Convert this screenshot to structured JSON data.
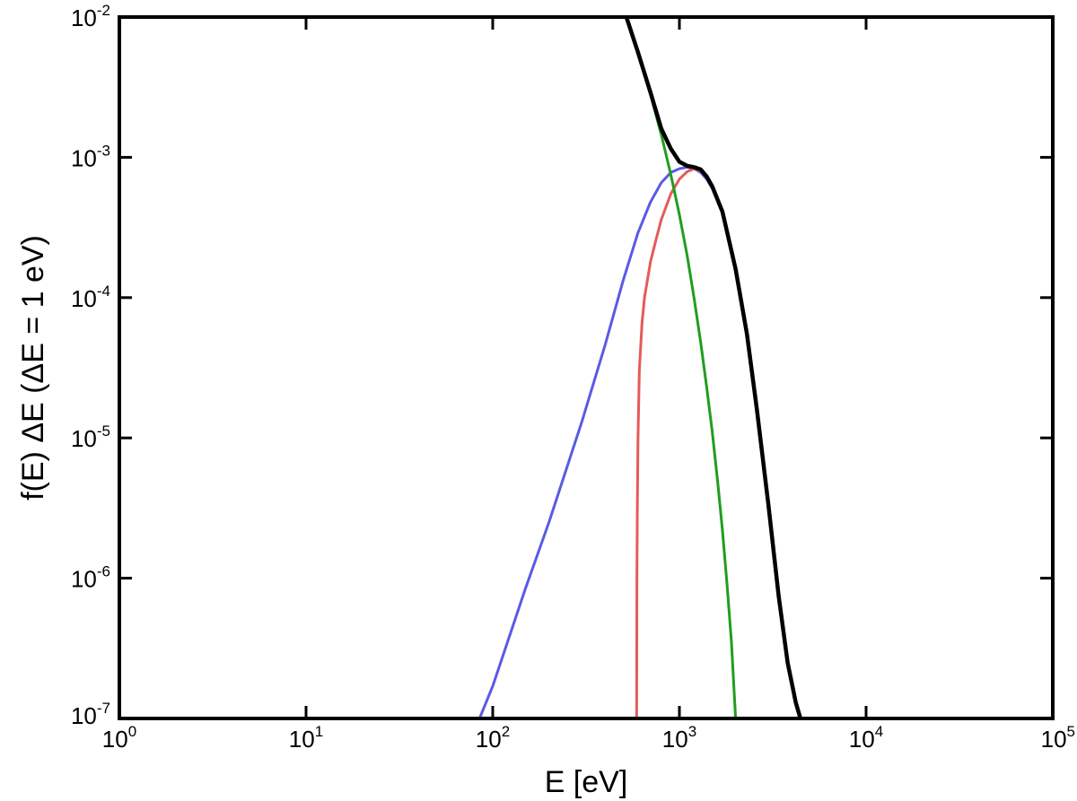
{
  "chart_data": {
    "type": "line",
    "title": "",
    "xlabel": "E [eV]",
    "ylabel": "f(E) ΔE   (ΔE = 1 eV)",
    "xscale": "log",
    "yscale": "log",
    "xlim": [
      1,
      100000
    ],
    "ylim": [
      1e-07,
      0.01
    ],
    "grid": false,
    "legend": "none",
    "x_ticks": [
      {
        "base": "10",
        "exp": "0",
        "value": 1
      },
      {
        "base": "10",
        "exp": "1",
        "value": 10
      },
      {
        "base": "10",
        "exp": "2",
        "value": 100
      },
      {
        "base": "10",
        "exp": "3",
        "value": 1000
      },
      {
        "base": "10",
        "exp": "4",
        "value": 10000
      },
      {
        "base": "10",
        "exp": "5",
        "value": 100000
      }
    ],
    "y_ticks": [
      {
        "base": "10",
        "exp": "-7",
        "value": 1e-07
      },
      {
        "base": "10",
        "exp": "-6",
        "value": 1e-06
      },
      {
        "base": "10",
        "exp": "-5",
        "value": 1e-05
      },
      {
        "base": "10",
        "exp": "-4",
        "value": 0.0001
      },
      {
        "base": "10",
        "exp": "-3",
        "value": 0.001
      },
      {
        "base": "10",
        "exp": "-2",
        "value": 0.01
      }
    ],
    "series": [
      {
        "color": "#5a5ae6",
        "x": [
          85,
          100,
          150,
          200,
          300,
          400,
          500,
          600,
          700,
          800,
          900,
          1000,
          1100,
          1200,
          1300,
          1400,
          1500,
          1700,
          2000,
          2300,
          2600,
          3000,
          3400,
          3800,
          4200,
          4450
        ],
        "y": [
          1e-07,
          1.7e-07,
          8.5e-07,
          2.5e-06,
          1.3e-05,
          4.6e-05,
          0.000133,
          0.00029,
          0.00048,
          0.00066,
          0.00078,
          0.00083,
          0.00085,
          0.00083,
          0.00078,
          0.0007,
          0.0006,
          0.0004,
          0.00016,
          5.5e-05,
          1.6e-05,
          3.3e-06,
          7.5e-07,
          2.5e-07,
          1.3e-07,
          1e-07
        ]
      },
      {
        "color": "#e65a5a",
        "x": [
          590,
          592,
          595,
          600,
          610,
          630,
          650,
          700,
          750,
          800,
          900,
          1000,
          1100,
          1200,
          1300,
          1400,
          1500,
          1700,
          2000,
          2300,
          2600,
          3000,
          3400,
          3800,
          4200,
          4450
        ],
        "y": [
          1e-07,
          1e-06,
          3e-06,
          1e-05,
          3e-05,
          6.5e-05,
          0.0001,
          0.00018,
          0.00026,
          0.00036,
          0.00055,
          0.0007,
          0.00079,
          0.00083,
          0.0008,
          0.00072,
          0.00062,
          0.00041,
          0.00016,
          5.5e-05,
          1.6e-05,
          3.3e-06,
          7.5e-07,
          2.5e-07,
          1.3e-07,
          1e-07
        ]
      },
      {
        "color": "#1f9e1f",
        "x": [
          520,
          600,
          700,
          800,
          900,
          1000,
          1100,
          1200,
          1300,
          1400,
          1500,
          1600,
          1700,
          1800,
          1900,
          2000
        ],
        "y": [
          0.01,
          0.0055,
          0.0028,
          0.00145,
          0.00075,
          0.00039,
          0.0002,
          9.8e-05,
          4.8e-05,
          2.3e-05,
          1.1e-05,
          5e-06,
          2.2e-06,
          9e-07,
          3.5e-07,
          1e-07
        ]
      },
      {
        "color": "#000000",
        "x": [
          520,
          600,
          700,
          800,
          900,
          1000,
          1100,
          1200,
          1300,
          1400,
          1500,
          1700,
          2000,
          2300,
          2600,
          3000,
          3400,
          3800,
          4200,
          4450
        ],
        "y": [
          0.01,
          0.0056,
          0.0029,
          0.0016,
          0.00115,
          0.00093,
          0.00087,
          0.00085,
          0.00082,
          0.00073,
          0.00062,
          0.00041,
          0.00016,
          5.5e-05,
          1.6e-05,
          3.3e-06,
          7.5e-07,
          2.5e-07,
          1.3e-07,
          1e-07
        ]
      }
    ]
  }
}
